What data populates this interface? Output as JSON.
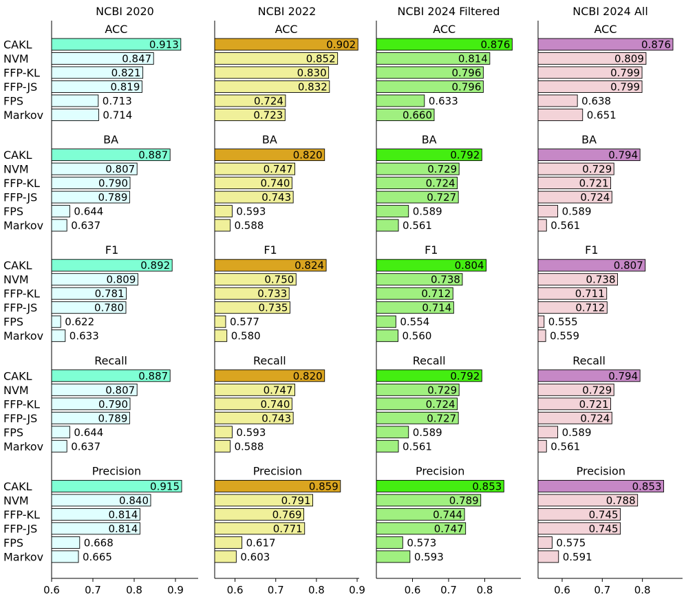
{
  "chart_data": {
    "type": "bar",
    "orientation": "horizontal",
    "methods": [
      "CAKL",
      "NVM",
      "FFP-KL",
      "FFP-JS",
      "FPS",
      "Markov"
    ],
    "metrics": [
      "ACC",
      "BA",
      "F1",
      "Recall",
      "Precision"
    ],
    "panels": [
      {
        "title": "NCBI 2020",
        "xlim": [
          0.6,
          0.955
        ],
        "xticks": [
          0.6,
          0.7,
          0.8,
          0.9
        ],
        "xtick_labels": [
          "0.6",
          "0.7",
          "0.8",
          "0.9"
        ],
        "highlight_color": "#7fffd4",
        "bar_color": "#e0ffff",
        "values": {
          "ACC": [
            0.913,
            0.847,
            0.821,
            0.819,
            0.713,
            0.714
          ],
          "BA": [
            0.887,
            0.807,
            0.79,
            0.789,
            0.644,
            0.637
          ],
          "F1": [
            0.892,
            0.809,
            0.781,
            0.78,
            0.622,
            0.633
          ],
          "Recall": [
            0.887,
            0.807,
            0.79,
            0.789,
            0.644,
            0.637
          ],
          "Precision": [
            0.915,
            0.84,
            0.814,
            0.814,
            0.668,
            0.665
          ]
        }
      },
      {
        "title": "NCBI 2022",
        "xlim": [
          0.55,
          0.905
        ],
        "xticks": [
          0.6,
          0.7,
          0.8,
          0.9
        ],
        "xtick_labels": [
          "0.6",
          "0.7",
          "0.8",
          "0.9"
        ],
        "highlight_color": "#daa520",
        "bar_color": "#f0f09a",
        "values": {
          "ACC": [
            0.902,
            0.852,
            0.83,
            0.832,
            0.724,
            0.723
          ],
          "BA": [
            0.82,
            0.747,
            0.74,
            0.743,
            0.593,
            0.588
          ],
          "F1": [
            0.824,
            0.75,
            0.733,
            0.735,
            0.577,
            0.58
          ],
          "Recall": [
            0.82,
            0.747,
            0.74,
            0.743,
            0.593,
            0.588
          ],
          "Precision": [
            0.859,
            0.791,
            0.769,
            0.771,
            0.617,
            0.603
          ]
        }
      },
      {
        "title": "NCBI 2024 Filtered",
        "xlim": [
          0.5,
          0.9
        ],
        "xticks": [
          0.6,
          0.7,
          0.8
        ],
        "xtick_labels": [
          "0.6",
          "0.7",
          "0.8"
        ],
        "highlight_color": "#44ee11",
        "bar_color": "#a0f080",
        "values": {
          "ACC": [
            0.876,
            0.814,
            0.796,
            0.796,
            0.633,
            0.66
          ],
          "BA": [
            0.792,
            0.729,
            0.724,
            0.727,
            0.589,
            0.561
          ],
          "F1": [
            0.804,
            0.738,
            0.712,
            0.714,
            0.554,
            0.56
          ],
          "Recall": [
            0.792,
            0.729,
            0.724,
            0.727,
            0.589,
            0.561
          ],
          "Precision": [
            0.853,
            0.789,
            0.744,
            0.747,
            0.573,
            0.593
          ]
        }
      },
      {
        "title": "NCBI 2024 All",
        "xlim": [
          0.54,
          0.9
        ],
        "xticks": [
          0.6,
          0.7,
          0.8
        ],
        "xtick_labels": [
          "0.6",
          "0.7",
          "0.8"
        ],
        "highlight_color": "#c688c6",
        "bar_color": "#f3d3d8",
        "values": {
          "ACC": [
            0.876,
            0.809,
            0.799,
            0.799,
            0.638,
            0.651
          ],
          "BA": [
            0.794,
            0.729,
            0.721,
            0.724,
            0.589,
            0.561
          ],
          "F1": [
            0.807,
            0.738,
            0.711,
            0.712,
            0.555,
            0.559
          ],
          "Recall": [
            0.794,
            0.729,
            0.721,
            0.724,
            0.589,
            0.561
          ],
          "Precision": [
            0.853,
            0.788,
            0.745,
            0.745,
            0.575,
            0.591
          ]
        }
      }
    ]
  }
}
